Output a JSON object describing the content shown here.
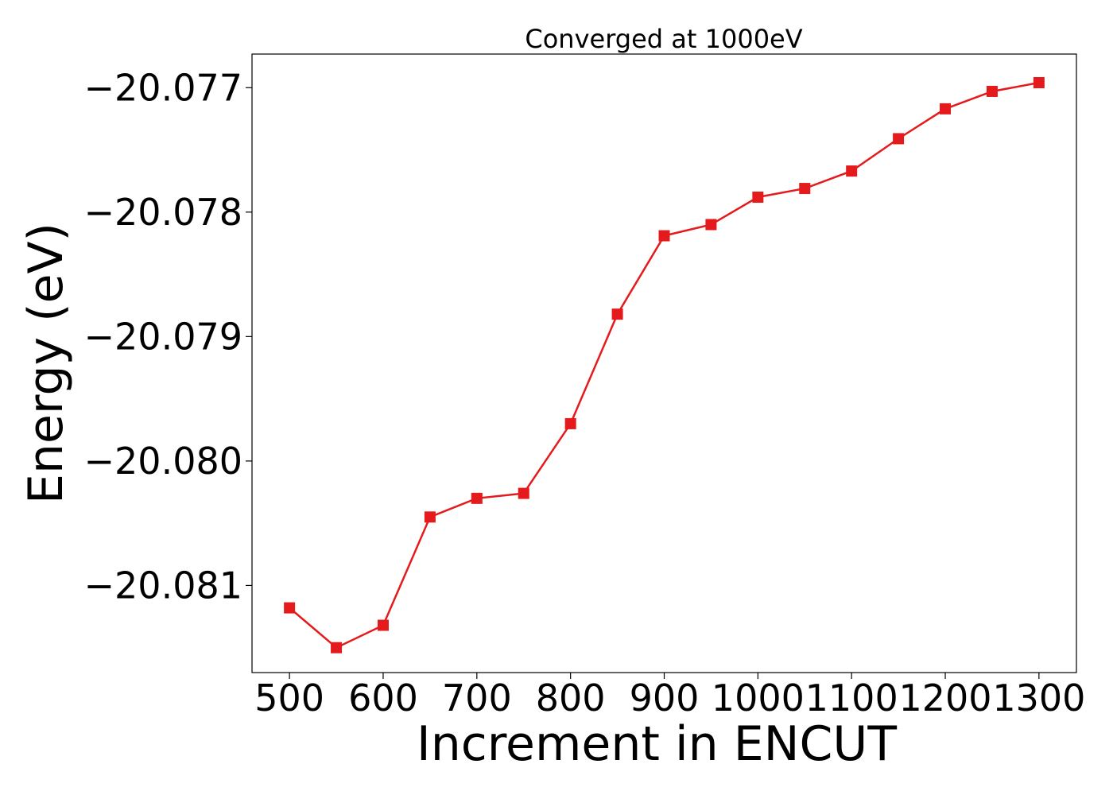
{
  "chart_data": {
    "type": "line",
    "title": "Converged at 1000eV",
    "xlabel": "Increment in ENCUT",
    "ylabel": "Energy (eV)",
    "x": [
      500,
      550,
      600,
      650,
      700,
      750,
      800,
      850,
      900,
      950,
      1000,
      1050,
      1100,
      1150,
      1200,
      1250,
      1300
    ],
    "series": [
      {
        "values": [
          -20.08118,
          -20.0815,
          -20.08132,
          -20.08045,
          -20.0803,
          -20.08026,
          -20.0797,
          -20.07882,
          -20.07819,
          -20.0781,
          -20.07788,
          -20.07781,
          -20.07767,
          -20.07741,
          -20.07717,
          -20.07703,
          -20.07696
        ],
        "color": "#e41a1c",
        "marker": "square"
      }
    ],
    "xticks": [
      500,
      600,
      700,
      800,
      900,
      1000,
      1100,
      1200,
      1300
    ],
    "xtick_labels": [
      "500",
      "600",
      "700",
      "800",
      "900",
      "1000",
      "1100",
      "1200",
      "1300"
    ],
    "yticks": [
      -20.081,
      -20.08,
      -20.079,
      -20.078,
      -20.077
    ],
    "ytick_labels": [
      "−20.081",
      "−20.080",
      "−20.079",
      "−20.078",
      "−20.077"
    ],
    "xlim": [
      460,
      1340
    ],
    "ylim": [
      -20.0817,
      -20.07673
    ],
    "grid": false
  }
}
